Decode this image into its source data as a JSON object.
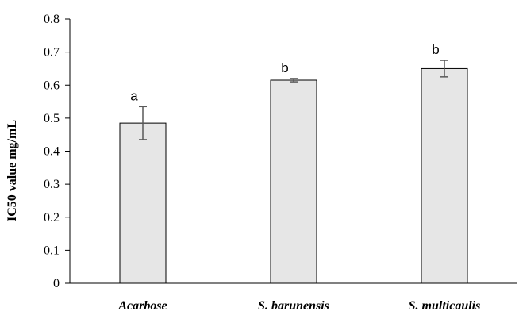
{
  "chart_data": {
    "type": "bar",
    "title": "",
    "xlabel": "",
    "ylabel": "IC50 value mg/mL",
    "ylim": [
      0,
      0.8
    ],
    "yticks": [
      "0",
      "0.1",
      "0.2",
      "0.3",
      "0.4",
      "0.5",
      "0.6",
      "0.7",
      "0.8"
    ],
    "categories": [
      "Acarbose",
      "S. barunensis",
      "S. multicaulis"
    ],
    "values": [
      0.485,
      0.615,
      0.65
    ],
    "errors": [
      0.05,
      0.005,
      0.025
    ],
    "significance": [
      "a",
      "b",
      "b"
    ],
    "grid": false,
    "legend": "none",
    "bar_fill": "#e6e6e6",
    "bar_stroke": "#000000",
    "error_bar_color": "#595959"
  }
}
